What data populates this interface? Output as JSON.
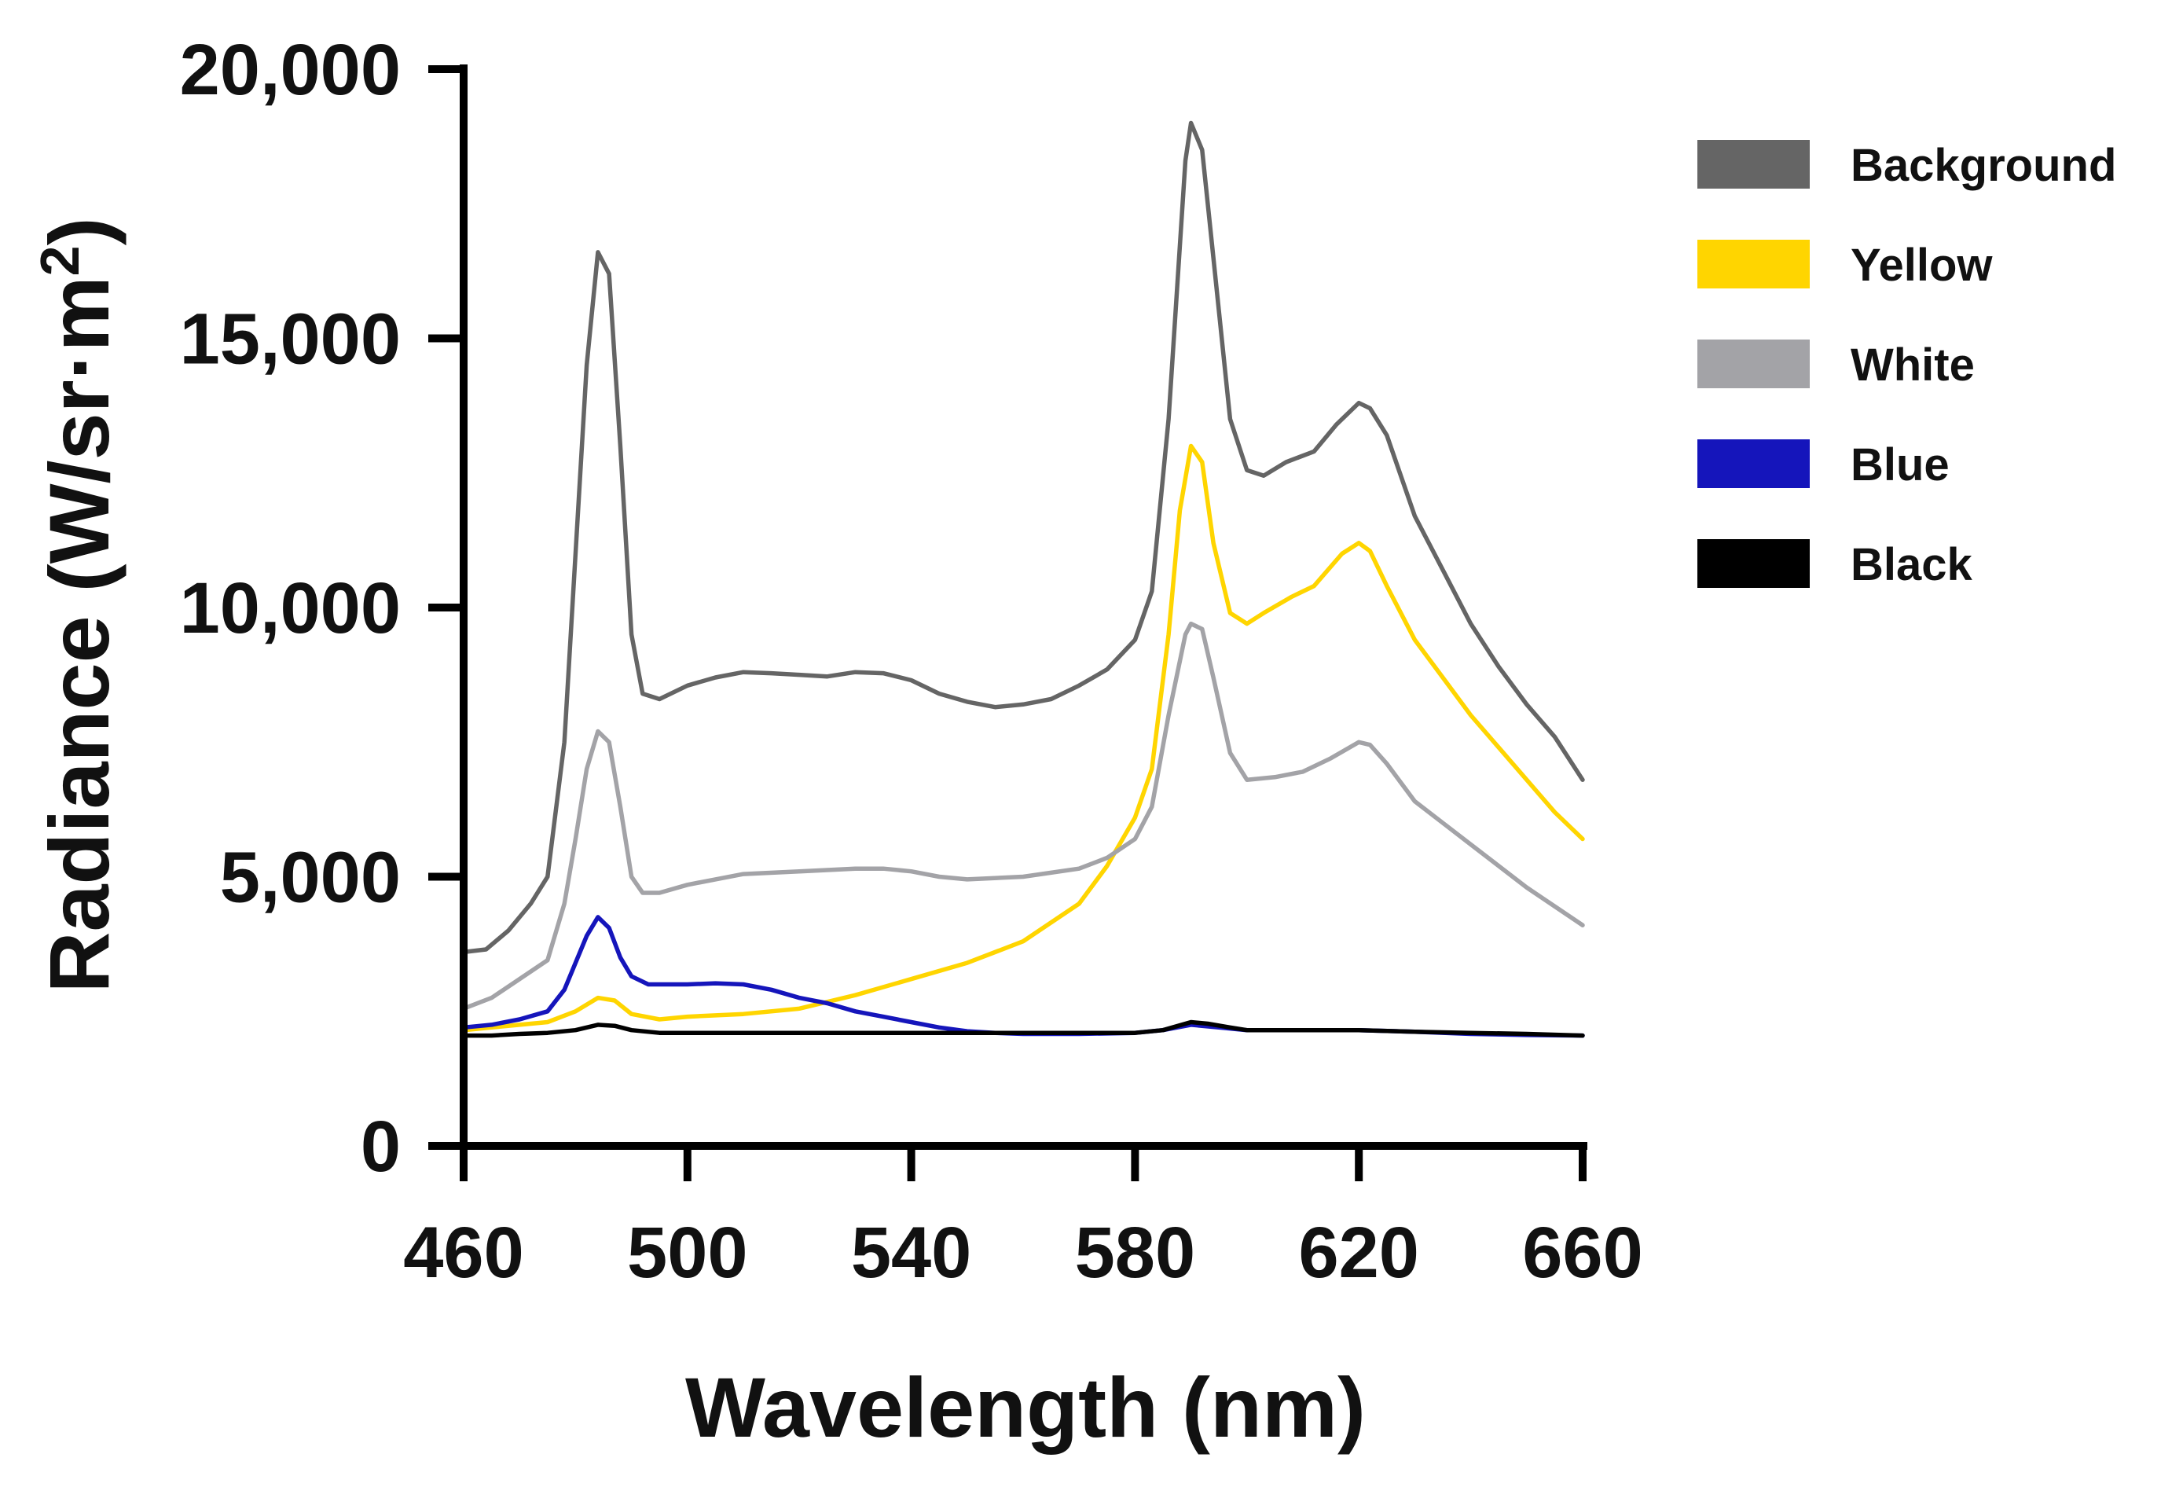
{
  "chart_data": {
    "type": "line",
    "title": "",
    "xlabel": "Wavelength (nm)",
    "ylabel": {
      "main": "Radiance (W/sr·m",
      "superscript": "2",
      "close": ")"
    },
    "xlim": [
      460,
      660
    ],
    "ylim": [
      0,
      20000
    ],
    "xticks": [
      460,
      500,
      540,
      580,
      620,
      660
    ],
    "yticks": [
      0,
      5000,
      10000,
      15000,
      20000
    ],
    "xtick_labels": [
      "460",
      "500",
      "540",
      "580",
      "620",
      "660"
    ],
    "ytick_labels": [
      "0",
      "5,000",
      "10,000",
      "15,000",
      "20,000"
    ],
    "grid": false,
    "legend_position": "top-right",
    "series": [
      {
        "name": "Background",
        "color": "#656565",
        "points": [
          [
            460,
            3600
          ],
          [
            464,
            3650
          ],
          [
            468,
            4000
          ],
          [
            472,
            4500
          ],
          [
            475,
            5000
          ],
          [
            478,
            7500
          ],
          [
            480,
            11000
          ],
          [
            482,
            14500
          ],
          [
            484,
            16600
          ],
          [
            486,
            16200
          ],
          [
            488,
            13000
          ],
          [
            490,
            9500
          ],
          [
            492,
            8400
          ],
          [
            495,
            8300
          ],
          [
            500,
            8550
          ],
          [
            505,
            8700
          ],
          [
            510,
            8800
          ],
          [
            515,
            8780
          ],
          [
            520,
            8750
          ],
          [
            525,
            8720
          ],
          [
            530,
            8800
          ],
          [
            535,
            8780
          ],
          [
            540,
            8650
          ],
          [
            545,
            8400
          ],
          [
            550,
            8250
          ],
          [
            555,
            8150
          ],
          [
            560,
            8200
          ],
          [
            565,
            8300
          ],
          [
            570,
            8550
          ],
          [
            575,
            8850
          ],
          [
            580,
            9400
          ],
          [
            583,
            10300
          ],
          [
            586,
            13500
          ],
          [
            589,
            18300
          ],
          [
            590,
            19000
          ],
          [
            592,
            18500
          ],
          [
            594,
            16500
          ],
          [
            597,
            13500
          ],
          [
            600,
            12550
          ],
          [
            603,
            12450
          ],
          [
            607,
            12700
          ],
          [
            612,
            12900
          ],
          [
            616,
            13400
          ],
          [
            620,
            13800
          ],
          [
            622,
            13700
          ],
          [
            625,
            13200
          ],
          [
            630,
            11700
          ],
          [
            635,
            10700
          ],
          [
            640,
            9700
          ],
          [
            645,
            8900
          ],
          [
            650,
            8200
          ],
          [
            655,
            7600
          ],
          [
            660,
            6800
          ]
        ]
      },
      {
        "name": "Yellow",
        "color": "#FFD500",
        "points": [
          [
            460,
            2150
          ],
          [
            465,
            2200
          ],
          [
            470,
            2250
          ],
          [
            475,
            2300
          ],
          [
            480,
            2500
          ],
          [
            484,
            2750
          ],
          [
            487,
            2700
          ],
          [
            490,
            2450
          ],
          [
            495,
            2350
          ],
          [
            500,
            2400
          ],
          [
            510,
            2450
          ],
          [
            520,
            2550
          ],
          [
            530,
            2800
          ],
          [
            540,
            3100
          ],
          [
            550,
            3400
          ],
          [
            560,
            3800
          ],
          [
            570,
            4500
          ],
          [
            575,
            5200
          ],
          [
            580,
            6100
          ],
          [
            583,
            7000
          ],
          [
            586,
            9500
          ],
          [
            588,
            11800
          ],
          [
            590,
            13000
          ],
          [
            592,
            12700
          ],
          [
            594,
            11200
          ],
          [
            597,
            9900
          ],
          [
            600,
            9700
          ],
          [
            603,
            9900
          ],
          [
            608,
            10200
          ],
          [
            612,
            10400
          ],
          [
            617,
            11000
          ],
          [
            620,
            11200
          ],
          [
            622,
            11050
          ],
          [
            625,
            10400
          ],
          [
            630,
            9400
          ],
          [
            635,
            8700
          ],
          [
            640,
            8000
          ],
          [
            645,
            7400
          ],
          [
            650,
            6800
          ],
          [
            655,
            6200
          ],
          [
            660,
            5700
          ]
        ]
      },
      {
        "name": "White",
        "color": "#A3A3A7",
        "points": [
          [
            460,
            2550
          ],
          [
            465,
            2750
          ],
          [
            470,
            3100
          ],
          [
            475,
            3450
          ],
          [
            478,
            4500
          ],
          [
            480,
            5700
          ],
          [
            482,
            7000
          ],
          [
            484,
            7700
          ],
          [
            486,
            7500
          ],
          [
            488,
            6300
          ],
          [
            490,
            5000
          ],
          [
            492,
            4700
          ],
          [
            495,
            4700
          ],
          [
            500,
            4850
          ],
          [
            505,
            4950
          ],
          [
            510,
            5050
          ],
          [
            520,
            5100
          ],
          [
            530,
            5150
          ],
          [
            535,
            5150
          ],
          [
            540,
            5100
          ],
          [
            545,
            5000
          ],
          [
            550,
            4950
          ],
          [
            560,
            5000
          ],
          [
            570,
            5150
          ],
          [
            575,
            5350
          ],
          [
            580,
            5700
          ],
          [
            583,
            6300
          ],
          [
            586,
            8000
          ],
          [
            589,
            9500
          ],
          [
            590,
            9700
          ],
          [
            592,
            9600
          ],
          [
            594,
            8700
          ],
          [
            597,
            7300
          ],
          [
            600,
            6800
          ],
          [
            605,
            6850
          ],
          [
            610,
            6950
          ],
          [
            615,
            7200
          ],
          [
            620,
            7500
          ],
          [
            622,
            7450
          ],
          [
            625,
            7100
          ],
          [
            630,
            6400
          ],
          [
            635,
            6000
          ],
          [
            640,
            5600
          ],
          [
            645,
            5200
          ],
          [
            650,
            4800
          ],
          [
            655,
            4450
          ],
          [
            660,
            4100
          ]
        ]
      },
      {
        "name": "Blue",
        "color": "#1515BB",
        "points": [
          [
            460,
            2200
          ],
          [
            465,
            2250
          ],
          [
            470,
            2350
          ],
          [
            475,
            2500
          ],
          [
            478,
            2900
          ],
          [
            480,
            3400
          ],
          [
            482,
            3900
          ],
          [
            484,
            4250
          ],
          [
            486,
            4050
          ],
          [
            488,
            3500
          ],
          [
            490,
            3150
          ],
          [
            493,
            3000
          ],
          [
            500,
            3000
          ],
          [
            505,
            3020
          ],
          [
            510,
            3000
          ],
          [
            515,
            2900
          ],
          [
            520,
            2750
          ],
          [
            525,
            2650
          ],
          [
            530,
            2500
          ],
          [
            535,
            2400
          ],
          [
            540,
            2300
          ],
          [
            545,
            2200
          ],
          [
            550,
            2130
          ],
          [
            555,
            2100
          ],
          [
            560,
            2080
          ],
          [
            570,
            2080
          ],
          [
            580,
            2100
          ],
          [
            585,
            2150
          ],
          [
            590,
            2250
          ],
          [
            595,
            2200
          ],
          [
            600,
            2150
          ],
          [
            610,
            2150
          ],
          [
            620,
            2150
          ],
          [
            630,
            2120
          ],
          [
            640,
            2080
          ],
          [
            650,
            2060
          ],
          [
            660,
            2050
          ]
        ]
      },
      {
        "name": "Black",
        "color": "#000000",
        "points": [
          [
            460,
            2050
          ],
          [
            465,
            2050
          ],
          [
            470,
            2080
          ],
          [
            475,
            2100
          ],
          [
            480,
            2150
          ],
          [
            484,
            2250
          ],
          [
            487,
            2230
          ],
          [
            490,
            2150
          ],
          [
            495,
            2100
          ],
          [
            500,
            2100
          ],
          [
            510,
            2100
          ],
          [
            520,
            2100
          ],
          [
            530,
            2100
          ],
          [
            540,
            2100
          ],
          [
            550,
            2100
          ],
          [
            560,
            2100
          ],
          [
            570,
            2100
          ],
          [
            580,
            2100
          ],
          [
            585,
            2150
          ],
          [
            590,
            2300
          ],
          [
            593,
            2270
          ],
          [
            597,
            2200
          ],
          [
            600,
            2150
          ],
          [
            610,
            2150
          ],
          [
            620,
            2150
          ],
          [
            630,
            2120
          ],
          [
            640,
            2100
          ],
          [
            650,
            2080
          ],
          [
            660,
            2050
          ]
        ]
      }
    ]
  }
}
